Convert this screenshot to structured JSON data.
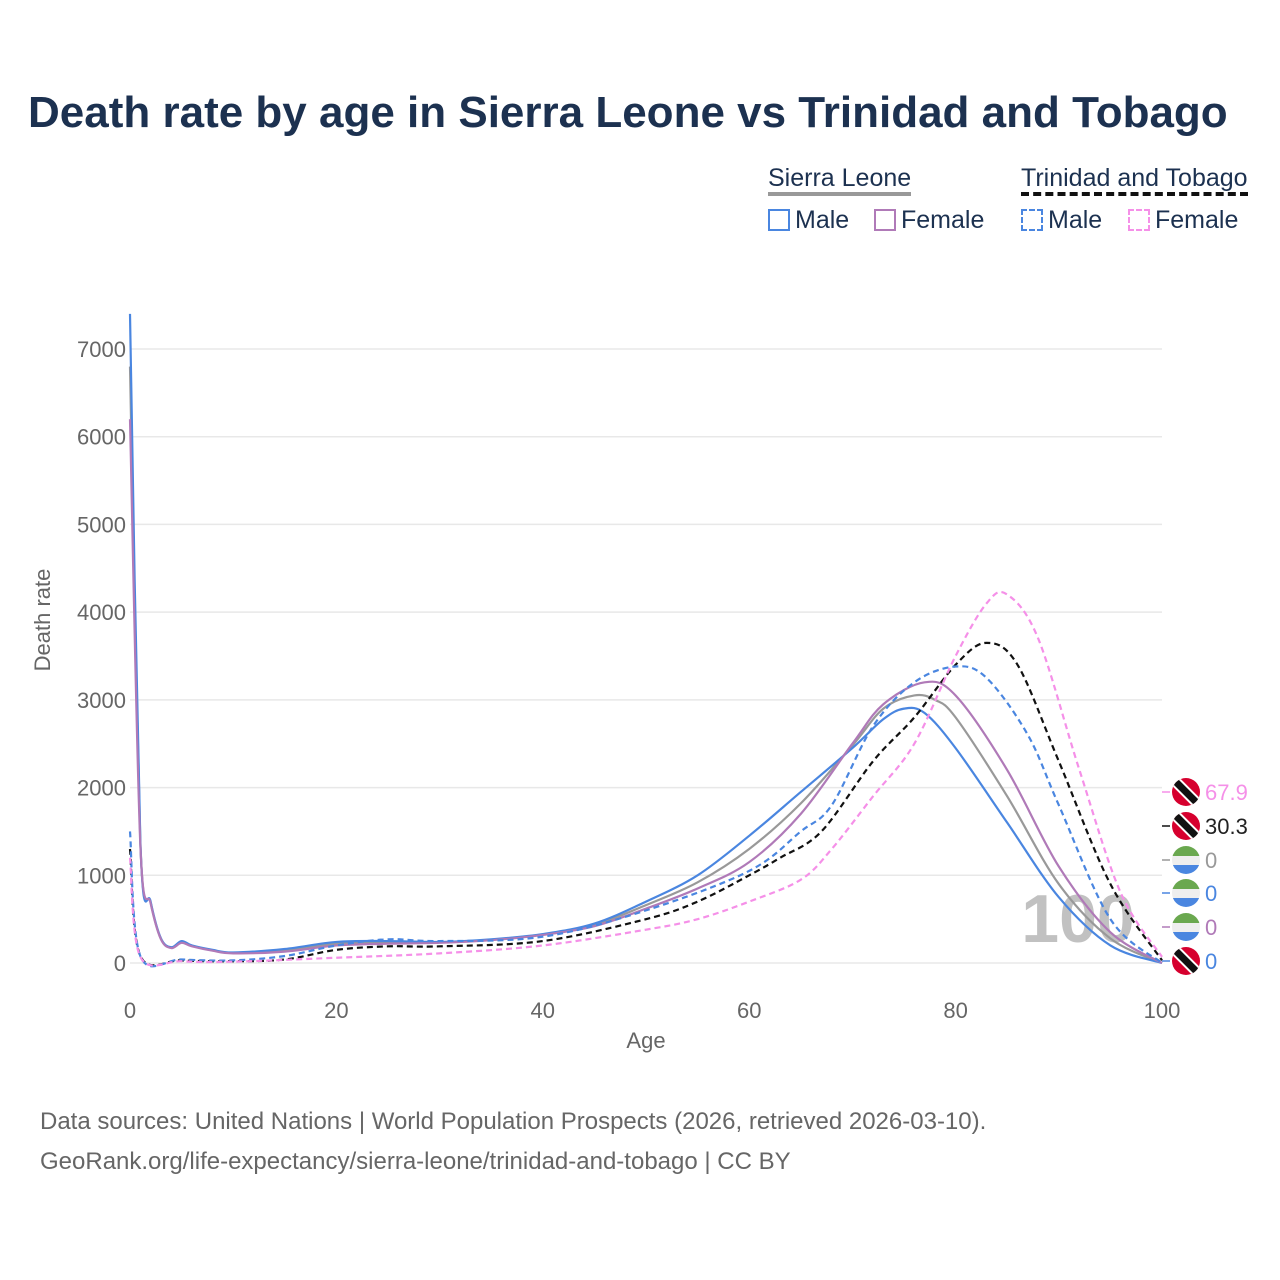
{
  "title": "Death rate by age in Sierra Leone vs Trinidad and Tobago",
  "legend": {
    "group1": "Sierra Leone",
    "group2": "Trinidad and Tobago",
    "male": "Male",
    "female": "Female"
  },
  "sources": {
    "line1": "Data sources: United Nations | World Population Prospects (2026, retrieved 2026-03-10).",
    "line2": "GeoRank.org/life-expectancy/sierra-leone/trinidad-and-tobago | CC BY"
  },
  "watermark": "100",
  "chart_data": {
    "type": "line",
    "xlabel": "Age",
    "ylabel": "Death rate",
    "xlim": [
      0,
      100
    ],
    "ylim": [
      0,
      7400
    ],
    "xticks": [
      0,
      20,
      40,
      60,
      80,
      100
    ],
    "yticks": [
      0,
      1000,
      2000,
      3000,
      4000,
      5000,
      6000,
      7000
    ],
    "series": [
      {
        "name": "Sierra Leone Total",
        "color": "#999999",
        "dash": false,
        "end_label": "0",
        "flag": "sl",
        "x": [
          0,
          1,
          2,
          3,
          4,
          5,
          6,
          8,
          10,
          15,
          20,
          25,
          30,
          35,
          40,
          45,
          50,
          55,
          60,
          65,
          70,
          73,
          76,
          78,
          80,
          85,
          90,
          95,
          100
        ],
        "y": [
          6800,
          1380,
          690,
          275,
          175,
          240,
          195,
          145,
          115,
          145,
          220,
          235,
          235,
          265,
          325,
          435,
          660,
          920,
          1300,
          1820,
          2480,
          2900,
          3050,
          3000,
          2800,
          1900,
          900,
          280,
          0
        ]
      },
      {
        "name": "Sierra Leone Male",
        "color": "#4a86e0",
        "dash": false,
        "end_label": "0",
        "flag": "sl",
        "x": [
          0,
          1,
          2,
          3,
          4,
          5,
          6,
          8,
          10,
          15,
          20,
          25,
          30,
          35,
          40,
          45,
          50,
          55,
          60,
          65,
          70,
          73,
          75,
          77,
          80,
          85,
          90,
          95,
          100
        ],
        "y": [
          7400,
          1400,
          700,
          280,
          180,
          250,
          200,
          150,
          120,
          160,
          240,
          250,
          240,
          270,
          330,
          450,
          700,
          1000,
          1450,
          1950,
          2450,
          2780,
          2900,
          2850,
          2450,
          1600,
          750,
          200,
          0
        ]
      },
      {
        "name": "Sierra Leone Female",
        "color": "#b07ab8",
        "dash": false,
        "end_label": "0",
        "flag": "sl",
        "x": [
          0,
          1,
          2,
          3,
          4,
          5,
          6,
          8,
          10,
          15,
          20,
          25,
          30,
          35,
          40,
          45,
          50,
          55,
          60,
          65,
          70,
          73,
          77,
          80,
          85,
          90,
          95,
          100
        ],
        "y": [
          6200,
          1350,
          680,
          270,
          170,
          230,
          190,
          140,
          110,
          130,
          200,
          220,
          230,
          260,
          320,
          420,
          620,
          850,
          1150,
          1700,
          2500,
          2950,
          3200,
          3050,
          2200,
          1100,
          350,
          0
        ]
      },
      {
        "name": "Trinidad and Tobago Total",
        "color": "#111111",
        "dash": true,
        "end_label": "30.3",
        "flag": "tt",
        "x": [
          0,
          1,
          5,
          10,
          15,
          20,
          25,
          30,
          40,
          50,
          55,
          60,
          63,
          67,
          72,
          76,
          80,
          83,
          86,
          90,
          95,
          100
        ],
        "y": [
          1300,
          80,
          30,
          20,
          40,
          150,
          190,
          190,
          250,
          500,
          700,
          1000,
          1200,
          1500,
          2300,
          2800,
          3400,
          3650,
          3400,
          2300,
          900,
          30
        ]
      },
      {
        "name": "Trinidad and Tobago Male",
        "color": "#4a86e0",
        "dash": true,
        "end_label": "0",
        "flag": "tt",
        "x": [
          0,
          1,
          5,
          10,
          15,
          20,
          25,
          30,
          40,
          50,
          60,
          65,
          68,
          72,
          76,
          80,
          83,
          87,
          90,
          95,
          100
        ],
        "y": [
          1500,
          80,
          40,
          30,
          80,
          200,
          270,
          250,
          300,
          600,
          1050,
          1500,
          1800,
          2700,
          3200,
          3380,
          3250,
          2600,
          1800,
          500,
          0
        ]
      },
      {
        "name": "Trinidad and Tobago Female",
        "color": "#f590e8",
        "dash": true,
        "end_label": "67.9",
        "flag": "tt",
        "x": [
          0,
          1,
          5,
          10,
          20,
          30,
          40,
          50,
          55,
          60,
          65,
          68,
          72,
          76,
          80,
          83,
          85,
          88,
          92,
          96,
          100
        ],
        "y": [
          1200,
          70,
          20,
          15,
          60,
          110,
          200,
          380,
          500,
          700,
          950,
          1300,
          1900,
          2500,
          3500,
          4100,
          4200,
          3700,
          2200,
          800,
          70
        ]
      }
    ]
  }
}
